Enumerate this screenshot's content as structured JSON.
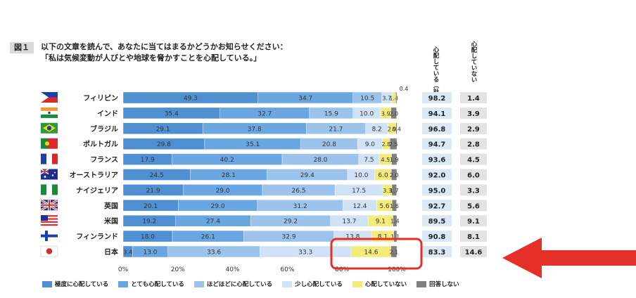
{
  "figure_label": "図１",
  "title_line1": "以下の文章を読んで、あなたに当てはまるかどうかお知らせください：",
  "title_line2": "「私は気候変動が人びとや地球を脅かすことを心配している。」",
  "col_total_header": "心配している（計）",
  "col_not_header": "心配していない",
  "colors": {
    "extremely": "#4f90d3",
    "very": "#6aa6e2",
    "moderately": "#9cc3ec",
    "little": "#cfe2f6",
    "not": "#f4ec7a",
    "no_answer": "#7f7f7f",
    "total_cell": "#dbe8f5",
    "not_cell": "#e3e3e3",
    "highlight": "#e5302a",
    "arrow": "#e5302a"
  },
  "chart_data": {
    "type": "bar",
    "orientation": "horizontal",
    "stacked": true,
    "normalized": true,
    "xlim": [
      0,
      100
    ],
    "x_ticks": [
      "0%",
      "20%",
      "40%",
      "60%",
      "80%",
      "100%"
    ],
    "categories": [
      "フィリピン",
      "インド",
      "ブラジル",
      "ポルトガル",
      "フランス",
      "オーストラリア",
      "ナイジェリア",
      "英国",
      "米国",
      "フィンランド",
      "日本"
    ],
    "series": [
      {
        "name": "極度に心配している",
        "values": [
          49.3,
          35.4,
          29.1,
          29.8,
          17.9,
          24.5,
          21.9,
          20.1,
          19.2,
          18.0,
          3.4
        ]
      },
      {
        "name": "とても心配している",
        "values": [
          34.7,
          32.7,
          37.8,
          35.1,
          40.2,
          28.1,
          29.0,
          29.0,
          27.4,
          26.1,
          13.0
        ]
      },
      {
        "name": "ほどほどに心配している",
        "values": [
          10.5,
          15.9,
          21.7,
          20.8,
          28.0,
          29.4,
          26.5,
          31.2,
          29.2,
          32.9,
          33.6
        ]
      },
      {
        "name": "少し心配している",
        "values": [
          3.7,
          10.0,
          8.2,
          9.0,
          7.5,
          10.0,
          17.5,
          12.4,
          13.7,
          13.8,
          33.3
        ]
      },
      {
        "name": "心配していない",
        "values": [
          1.4,
          3.9,
          2.9,
          2.8,
          4.5,
          6.0,
          3.3,
          5.6,
          9.1,
          8.1,
          14.6
        ]
      },
      {
        "name": "回答しない",
        "values": [
          0.4,
          2.0,
          0.4,
          2.5,
          1.9,
          2.0,
          1.7,
          1.6,
          1.4,
          1.1,
          2.1
        ]
      }
    ],
    "labels": [
      [
        "49.3",
        "34.7",
        "10.5",
        "3.7",
        "1.4",
        "0.4"
      ],
      [
        "35.4",
        "32.7",
        "15.9",
        "10.0",
        "3.9",
        "2.0"
      ],
      [
        "29.1",
        "37.8",
        "21.7",
        "8.2",
        "2.9",
        "0.4"
      ],
      [
        "29.8",
        "35.1",
        "20.8",
        "9.0",
        "2.8",
        "2.5"
      ],
      [
        "17.9",
        "40.2",
        "28.0",
        "7.5",
        "4.5",
        "1.9"
      ],
      [
        "24.5",
        "28.1",
        "29.4",
        "10.0",
        "6.0",
        "2.0"
      ],
      [
        "21.9",
        "29.0",
        "26.5",
        "17.5",
        "3.3",
        "1.7"
      ],
      [
        "20.1",
        "29.0",
        "31.2",
        "12.4",
        "5.6",
        "1.6"
      ],
      [
        "19.2",
        "27.4",
        "29.2",
        "13.7",
        "9.1",
        "1.4"
      ],
      [
        "18.0",
        "26.1",
        "32.9",
        "13.8",
        "8.1",
        "1.1"
      ],
      [
        "3.4",
        "13.0",
        "33.6",
        "33.3",
        "14.6",
        "2.1"
      ]
    ],
    "total_worried": [
      "98.2",
      "94.1",
      "96.8",
      "94.7",
      "93.6",
      "92.0",
      "95.0",
      "92.7",
      "89.5",
      "90.8",
      "83.3"
    ],
    "not_worried": [
      "1.4",
      "3.9",
      "2.9",
      "2.8",
      "4.5",
      "6.0",
      "3.3",
      "5.6",
      "9.1",
      "8.1",
      "14.6"
    ],
    "highlighted_category": "日本",
    "legend_position": "bottom"
  }
}
